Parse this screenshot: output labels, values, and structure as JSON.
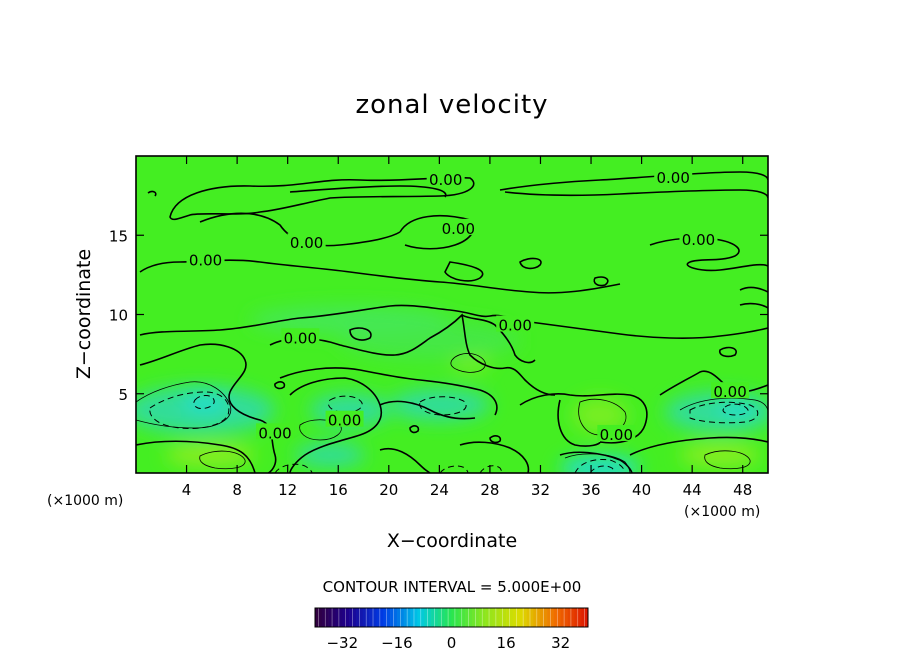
{
  "chart_data": {
    "type": "heatmap",
    "title": "zonal velocity",
    "xlabel": "X−coordinate",
    "ylabel": "Z−coordinate",
    "x_unit_left": "(×1000 m)",
    "x_unit_right": "(×1000 m)",
    "xlim": [
      0,
      50
    ],
    "ylim": [
      0,
      20
    ],
    "x_ticks": [
      {
        "value": 4,
        "label": "4"
      },
      {
        "value": 8,
        "label": "8"
      },
      {
        "value": 12,
        "label": "12"
      },
      {
        "value": 16,
        "label": "16"
      },
      {
        "value": 20,
        "label": "20"
      },
      {
        "value": 24,
        "label": "24"
      },
      {
        "value": 28,
        "label": "28"
      },
      {
        "value": 32,
        "label": "32"
      },
      {
        "value": 36,
        "label": "36"
      },
      {
        "value": 40,
        "label": "40"
      },
      {
        "value": 44,
        "label": "44"
      },
      {
        "value": 48,
        "label": "48"
      }
    ],
    "y_ticks": [
      {
        "value": 5,
        "label": "5"
      },
      {
        "value": 10,
        "label": "10"
      },
      {
        "value": 15,
        "label": "15"
      }
    ],
    "contour_interval_text": "CONTOUR INTERVAL = 5.000E+00",
    "contour_labels": [
      {
        "text": "0.00",
        "x": 24.5,
        "y": 18.5
      },
      {
        "text": "0.00",
        "x": 42.5,
        "y": 18.6
      },
      {
        "text": "0.00",
        "x": 25.5,
        "y": 15.4
      },
      {
        "text": "0.00",
        "x": 13.5,
        "y": 14.5
      },
      {
        "text": "0.00",
        "x": 44.5,
        "y": 14.7
      },
      {
        "text": "0.00",
        "x": 5.5,
        "y": 13.4
      },
      {
        "text": "0.00",
        "x": 13.0,
        "y": 8.5
      },
      {
        "text": "0.00",
        "x": 30.0,
        "y": 9.3
      },
      {
        "text": "0.00",
        "x": 47.0,
        "y": 5.1
      },
      {
        "text": "0.00",
        "x": 16.5,
        "y": 3.3
      },
      {
        "text": "0.00",
        "x": 11.0,
        "y": 2.5
      },
      {
        "text": "0.00",
        "x": 38.0,
        "y": 2.4
      }
    ],
    "colorbar": {
      "min": -40,
      "max": 40,
      "ticks": [
        {
          "value": -32,
          "label": "−32"
        },
        {
          "value": -16,
          "label": "−16"
        },
        {
          "value": 0,
          "label": "0"
        },
        {
          "value": 16,
          "label": "16"
        },
        {
          "value": 32,
          "label": "32"
        }
      ]
    },
    "colors": {
      "background_field": "#44ee22",
      "weak_positive": "#88ee22",
      "weak_negative": "#33dd88",
      "negative_core": "#22ddcc",
      "contour": "#000000"
    },
    "grid": false
  }
}
